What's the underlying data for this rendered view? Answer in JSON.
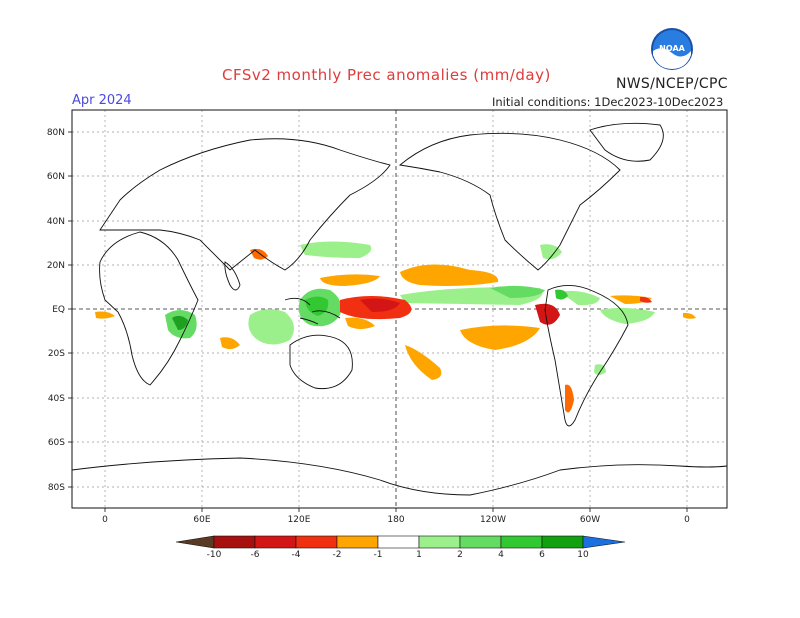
{
  "header": {
    "title": "CFSv2 monthly Prec anomalies (mm/day)",
    "month": "Apr 2024",
    "init": "Initial conditions: 1Dec2023-10Dec2023",
    "agency": "NWS/NCEP/CPC",
    "logo_text": "NOAA"
  },
  "axes": {
    "lat_labels": [
      "80N",
      "60N",
      "40N",
      "20N",
      "EQ",
      "20S",
      "40S",
      "60S",
      "80S"
    ],
    "lon_labels": [
      "0",
      "60E",
      "120E",
      "180",
      "120W",
      "60W",
      "0"
    ]
  },
  "colorbar": {
    "labels": [
      "-10",
      "-6",
      "-4",
      "-2",
      "-1",
      "1",
      "2",
      "4",
      "6",
      "10"
    ],
    "colors": [
      "#5a3a22",
      "#a81010",
      "#d41515",
      "#f03010",
      "#ff6a00",
      "#ffa500",
      "#ffffff",
      "#9cf08c",
      "#64dc64",
      "#32c832",
      "#20a020",
      "#10a010",
      "#1a70e0"
    ]
  }
}
